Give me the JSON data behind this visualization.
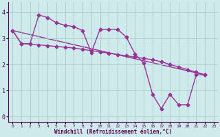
{
  "line1_x": [
    0,
    1,
    2,
    3,
    4,
    5,
    6,
    7,
    8,
    9,
    10,
    11,
    12,
    13,
    14,
    15,
    16,
    17,
    18,
    19,
    20,
    21,
    22
  ],
  "line1_y": [
    3.3,
    2.8,
    2.8,
    3.9,
    3.8,
    3.6,
    3.5,
    3.45,
    3.3,
    2.45,
    3.35,
    3.35,
    3.35,
    3.05,
    2.4,
    2.05,
    0.85,
    0.3,
    0.85,
    0.45,
    0.45,
    1.6,
    1.6
  ],
  "line2_x": [
    0,
    1,
    2,
    3,
    4,
    5,
    6,
    7,
    8,
    9,
    10,
    11,
    12,
    13,
    14,
    15,
    16,
    17,
    18,
    19,
    20,
    21,
    22
  ],
  "line2_y": [
    3.3,
    2.8,
    2.78,
    2.75,
    2.72,
    2.69,
    2.66,
    2.63,
    2.58,
    2.53,
    2.48,
    2.43,
    2.38,
    2.33,
    2.28,
    2.23,
    2.18,
    2.1,
    2.0,
    1.9,
    1.8,
    1.7,
    1.6
  ],
  "line3_x": [
    0,
    22
  ],
  "line3_y": [
    3.3,
    1.6
  ],
  "color": "#993399",
  "bg_color": "#ceeaea",
  "xlabel": "Windchill (Refroidissement éolien,°C)",
  "ylim": [
    -0.2,
    4.4
  ],
  "xlim": [
    -0.5,
    23.5
  ],
  "yticks": [
    0,
    1,
    2,
    3,
    4
  ],
  "xticks": [
    0,
    1,
    2,
    3,
    4,
    5,
    6,
    7,
    8,
    9,
    10,
    11,
    12,
    13,
    14,
    15,
    16,
    17,
    18,
    19,
    20,
    21,
    22,
    23
  ],
  "grid_color": "#aacccc",
  "marker": "D",
  "markersize": 2.5,
  "linewidth": 1.0
}
